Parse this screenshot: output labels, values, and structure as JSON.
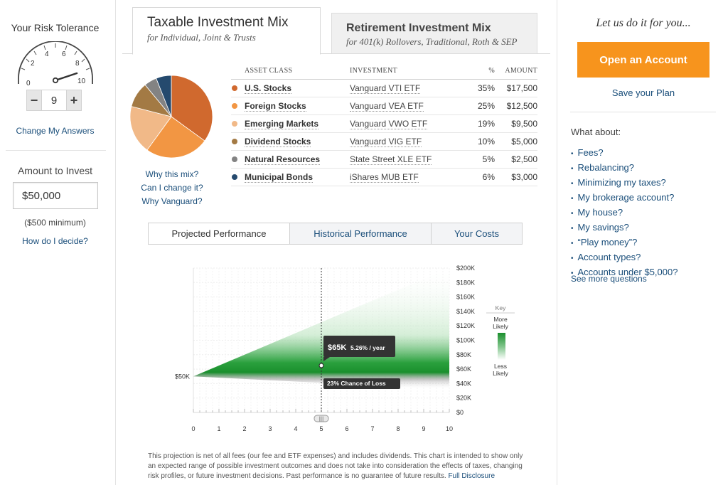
{
  "risk": {
    "title": "Your Risk Tolerance",
    "gauge_labels": [
      "0",
      "2",
      "4",
      "6",
      "8",
      "10"
    ],
    "value": "9",
    "minus": "−",
    "plus": "+",
    "change_link": "Change My Answers"
  },
  "amount": {
    "title": "Amount to Invest",
    "value": "$50,000",
    "minimum": "($500 minimum)",
    "how_link": "How do I decide?"
  },
  "tabs": {
    "taxable": {
      "title": "Taxable Investment Mix",
      "subtitle": "for Individual, Joint & Trusts"
    },
    "retirement": {
      "title": "Retirement Investment Mix",
      "subtitle": "for 401(k) Rollovers, Traditional, Roth & SEP"
    }
  },
  "pie_links": [
    "Why this mix?",
    "Can I change it?",
    "Why Vanguard?"
  ],
  "allocation": {
    "headers": {
      "class": "ASSET CLASS",
      "investment": "INVESTMENT",
      "pct": "%",
      "amount": "AMOUNT"
    },
    "rows": [
      {
        "class": "U.S. Stocks",
        "investment": "Vanguard VTI ETF",
        "pct": "35%",
        "amount": "$17,500",
        "color": "#d0692e",
        "value": 35
      },
      {
        "class": "Foreign Stocks",
        "investment": "Vanguard VEA ETF",
        "pct": "25%",
        "amount": "$12,500",
        "color": "#f29643",
        "value": 25
      },
      {
        "class": "Emerging Markets",
        "investment": "Vanguard VWO ETF",
        "pct": "19%",
        "amount": "$9,500",
        "color": "#f1b988",
        "value": 19
      },
      {
        "class": "Dividend Stocks",
        "investment": "Vanguard VIG ETF",
        "pct": "10%",
        "amount": "$5,000",
        "color": "#a37a44",
        "value": 10
      },
      {
        "class": "Natural Resources",
        "investment": "State Street XLE ETF",
        "pct": "5%",
        "amount": "$2,500",
        "color": "#838383",
        "value": 5
      },
      {
        "class": "Municipal Bonds",
        "investment": "iShares MUB ETF",
        "pct": "6%",
        "amount": "$3,000",
        "color": "#254a6e",
        "value": 6
      }
    ]
  },
  "perf_tabs": [
    "Projected Performance",
    "Historical Performance",
    "Your Costs"
  ],
  "chart_data": {
    "type": "area",
    "x_ticks": [
      "0",
      "1",
      "2",
      "3",
      "4",
      "5",
      "6",
      "7",
      "8",
      "9",
      "10"
    ],
    "y_ticks": [
      "$0",
      "$20K",
      "$40K",
      "$60K",
      "$80K",
      "$100K",
      "$120K",
      "$140K",
      "$160K",
      "$180K",
      "$200K"
    ],
    "ylim": [
      0,
      200000
    ],
    "xlim": [
      0,
      10
    ],
    "start_label": "$50K",
    "start_value": 50000,
    "median": {
      "x": [
        0,
        5,
        10
      ],
      "y": [
        50000,
        65000,
        84000
      ]
    },
    "band_upper": {
      "x": [
        0,
        10
      ],
      "y": [
        50000,
        200000
      ]
    },
    "band_lower": {
      "x": [
        0,
        10
      ],
      "y": [
        50000,
        32000
      ]
    },
    "selected_year": 5,
    "tooltip_value": "$65K",
    "tooltip_rate": "5.26% / year",
    "loss_label": "23% Chance of Loss",
    "key": {
      "title": "Key",
      "more": "More Likely",
      "less": "Less Likely"
    },
    "handle_label": "||||"
  },
  "disclaimer": {
    "text": "This projection is net of all fees (our fee and ETF expenses) and includes dividends. This chart is intended to show only an expected range of possible investment outcomes and does not take into consideration the effects of taxes, changing risk profiles, or future investment decisions. Past performance is no guarantee of future results.",
    "link": "Full Disclosure"
  },
  "sidebar": {
    "promo": "Let us do it for you...",
    "open_account": "Open an Account",
    "save_plan": "Save your Plan",
    "what_about": "What about:",
    "questions": [
      "Fees?",
      "Rebalancing?",
      "Minimizing my taxes?",
      "My brokerage account?",
      "My house?",
      "My savings?",
      "“Play money”?",
      "Account types?",
      "Accounts under $5,000?"
    ],
    "see_more": "See more questions"
  },
  "colors": {
    "accent_orange": "#f7941d",
    "link_blue": "#1a4e7a",
    "band_green": "#159a2a"
  }
}
